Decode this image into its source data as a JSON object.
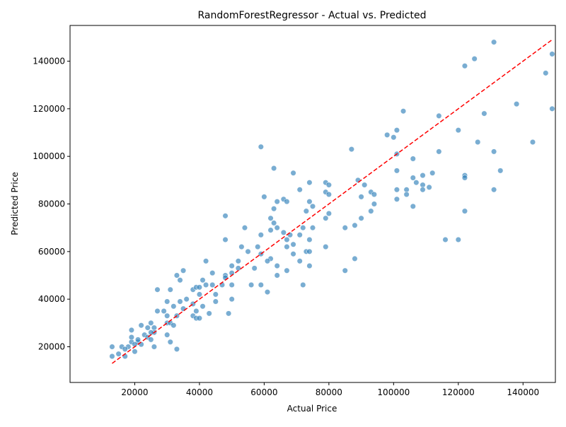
{
  "chart_data": {
    "type": "scatter",
    "title": "RandomForestRegressor - Actual vs. Predicted",
    "xlabel": "Actual Price",
    "ylabel": "Predicted Price",
    "xlim": [
      0,
      150000
    ],
    "ylim": [
      5000,
      155000
    ],
    "xticks": [
      20000,
      40000,
      60000,
      80000,
      100000,
      120000,
      140000
    ],
    "yticks": [
      20000,
      40000,
      60000,
      80000,
      100000,
      120000,
      140000
    ],
    "xtick_labels": [
      "20000",
      "40000",
      "60000",
      "80000",
      "100000",
      "120000",
      "140000"
    ],
    "ytick_labels": [
      "20000",
      "40000",
      "60000",
      "80000",
      "100000",
      "120000",
      "140000"
    ],
    "grid": false,
    "point_color": "#1f77b4",
    "point_alpha": 0.6,
    "reference_line": {
      "from": [
        13000,
        13000
      ],
      "to": [
        149000,
        149000
      ],
      "color": "#ff0000",
      "style": "dashed"
    },
    "points": [
      [
        131000,
        148000
      ],
      [
        125000,
        141000
      ],
      [
        122000,
        138000
      ],
      [
        149000,
        143000
      ],
      [
        147000,
        135000
      ],
      [
        138000,
        122000
      ],
      [
        149000,
        120000
      ],
      [
        103000,
        119000
      ],
      [
        128000,
        118000
      ],
      [
        114000,
        117000
      ],
      [
        101000,
        111000
      ],
      [
        120000,
        111000
      ],
      [
        98000,
        109000
      ],
      [
        100000,
        108000
      ],
      [
        126000,
        106000
      ],
      [
        143000,
        106000
      ],
      [
        87000,
        103000
      ],
      [
        59000,
        104000
      ],
      [
        114000,
        102000
      ],
      [
        131000,
        102000
      ],
      [
        101000,
        101000
      ],
      [
        106000,
        99000
      ],
      [
        63000,
        95000
      ],
      [
        101000,
        94000
      ],
      [
        133000,
        94000
      ],
      [
        69000,
        93000
      ],
      [
        109000,
        92000
      ],
      [
        112000,
        93000
      ],
      [
        122000,
        92000
      ],
      [
        122000,
        91000
      ],
      [
        89000,
        90000
      ],
      [
        106000,
        91000
      ],
      [
        74000,
        89000
      ],
      [
        79000,
        89000
      ],
      [
        107000,
        89000
      ],
      [
        91000,
        88000
      ],
      [
        80000,
        88000
      ],
      [
        109000,
        88000
      ],
      [
        71000,
        86000
      ],
      [
        104000,
        86000
      ],
      [
        111000,
        87000
      ],
      [
        101000,
        86000
      ],
      [
        109000,
        86000
      ],
      [
        131000,
        86000
      ],
      [
        79000,
        85000
      ],
      [
        80000,
        84000
      ],
      [
        93000,
        85000
      ],
      [
        104000,
        84000
      ],
      [
        60000,
        83000
      ],
      [
        90000,
        83000
      ],
      [
        94000,
        84000
      ],
      [
        101000,
        82000
      ],
      [
        64000,
        81000
      ],
      [
        66000,
        82000
      ],
      [
        67000,
        81000
      ],
      [
        74000,
        81000
      ],
      [
        75000,
        79000
      ],
      [
        94000,
        80000
      ],
      [
        106000,
        79000
      ],
      [
        63000,
        78000
      ],
      [
        73000,
        77000
      ],
      [
        93000,
        77000
      ],
      [
        122000,
        77000
      ],
      [
        80000,
        76000
      ],
      [
        48000,
        75000
      ],
      [
        62000,
        74000
      ],
      [
        79000,
        74000
      ],
      [
        90000,
        74000
      ],
      [
        63000,
        72000
      ],
      [
        64000,
        70000
      ],
      [
        54000,
        70000
      ],
      [
        62000,
        69000
      ],
      [
        66000,
        68000
      ],
      [
        72000,
        70000
      ],
      [
        75000,
        70000
      ],
      [
        85000,
        70000
      ],
      [
        88000,
        71000
      ],
      [
        59000,
        67000
      ],
      [
        68000,
        67000
      ],
      [
        71000,
        67000
      ],
      [
        48000,
        65000
      ],
      [
        67000,
        65000
      ],
      [
        74000,
        65000
      ],
      [
        116000,
        65000
      ],
      [
        120000,
        65000
      ],
      [
        53000,
        62000
      ],
      [
        58000,
        62000
      ],
      [
        67000,
        62000
      ],
      [
        69000,
        63000
      ],
      [
        79000,
        62000
      ],
      [
        73000,
        60000
      ],
      [
        74000,
        60000
      ],
      [
        55000,
        60000
      ],
      [
        59000,
        59000
      ],
      [
        62000,
        57000
      ],
      [
        69000,
        59000
      ],
      [
        42000,
        56000
      ],
      [
        52000,
        56000
      ],
      [
        61000,
        56000
      ],
      [
        71000,
        56000
      ],
      [
        88000,
        57000
      ],
      [
        50000,
        54000
      ],
      [
        52000,
        53000
      ],
      [
        64000,
        54000
      ],
      [
        74000,
        54000
      ],
      [
        35000,
        52000
      ],
      [
        44000,
        51000
      ],
      [
        50000,
        51000
      ],
      [
        57000,
        53000
      ],
      [
        64000,
        50000
      ],
      [
        67000,
        52000
      ],
      [
        85000,
        52000
      ],
      [
        33000,
        50000
      ],
      [
        41000,
        48000
      ],
      [
        48000,
        50000
      ],
      [
        48000,
        49000
      ],
      [
        34000,
        48000
      ],
      [
        42000,
        46000
      ],
      [
        47000,
        46000
      ],
      [
        50000,
        46000
      ],
      [
        56000,
        46000
      ],
      [
        59000,
        46000
      ],
      [
        72000,
        46000
      ],
      [
        38000,
        44000
      ],
      [
        39000,
        45000
      ],
      [
        40000,
        45000
      ],
      [
        27000,
        44000
      ],
      [
        31000,
        44000
      ],
      [
        44000,
        46000
      ],
      [
        45000,
        42000
      ],
      [
        36000,
        40000
      ],
      [
        40000,
        42000
      ],
      [
        30000,
        39000
      ],
      [
        34000,
        39000
      ],
      [
        38000,
        38000
      ],
      [
        41000,
        37000
      ],
      [
        61000,
        43000
      ],
      [
        45000,
        39000
      ],
      [
        50000,
        40000
      ],
      [
        32000,
        37000
      ],
      [
        35000,
        36000
      ],
      [
        39000,
        35000
      ],
      [
        43000,
        34000
      ],
      [
        27000,
        35000
      ],
      [
        29000,
        35000
      ],
      [
        30000,
        33000
      ],
      [
        33000,
        33000
      ],
      [
        38000,
        33000
      ],
      [
        49000,
        34000
      ],
      [
        39000,
        32000
      ],
      [
        40000,
        32000
      ],
      [
        30000,
        30000
      ],
      [
        31000,
        30000
      ],
      [
        32000,
        29000
      ],
      [
        25000,
        30000
      ],
      [
        22000,
        29000
      ],
      [
        19000,
        27000
      ],
      [
        24000,
        28000
      ],
      [
        26000,
        28000
      ],
      [
        26000,
        26000
      ],
      [
        25000,
        26000
      ],
      [
        23000,
        25000
      ],
      [
        24000,
        24000
      ],
      [
        30000,
        25000
      ],
      [
        25000,
        23000
      ],
      [
        21000,
        22000
      ],
      [
        19000,
        22000
      ],
      [
        20000,
        21000
      ],
      [
        26000,
        20000
      ],
      [
        22000,
        21000
      ],
      [
        18000,
        20000
      ],
      [
        16000,
        20000
      ],
      [
        13000,
        20000
      ],
      [
        17000,
        19000
      ],
      [
        20000,
        18000
      ],
      [
        15000,
        17000
      ],
      [
        17000,
        16000
      ],
      [
        13000,
        16000
      ],
      [
        31000,
        22000
      ],
      [
        33000,
        19000
      ],
      [
        19000,
        24000
      ],
      [
        21000,
        23000
      ]
    ]
  }
}
